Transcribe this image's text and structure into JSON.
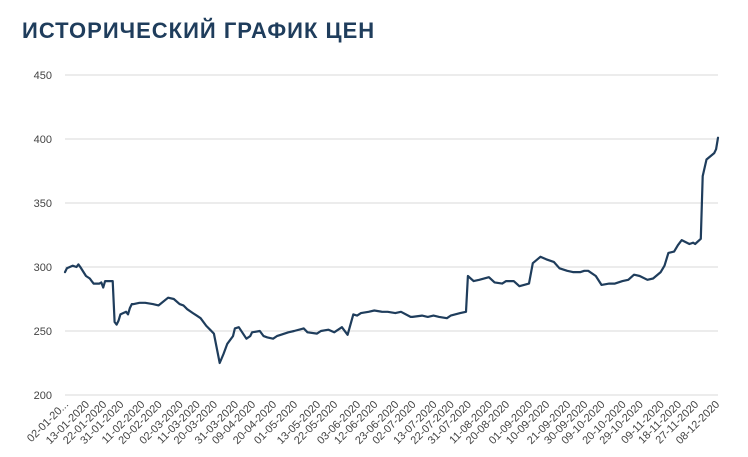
{
  "chart_data": {
    "type": "line",
    "title": "ИСТОРИЧЕСКИЙ ГРАФИК ЦЕН",
    "xlabel": "",
    "ylabel": "",
    "ylim": [
      200,
      450
    ],
    "yticks": [
      200,
      250,
      300,
      350,
      400,
      450
    ],
    "grid": true,
    "line_color": "#1f3d5c",
    "x_tick_labels": [
      "02-01-20...",
      "13-01-2020",
      "22-01-2020",
      "31-01-2020",
      "11-02-2020",
      "20-02-2020",
      "02-03-2020",
      "11-03-2020",
      "20-03-2020",
      "31-03-2020",
      "09-04-2020",
      "20-04-2020",
      "01-05-2020",
      "13-05-2020",
      "22-05-2020",
      "03-06-2020",
      "12-06-2020",
      "23-06-2020",
      "02-07-2020",
      "13-07-2020",
      "22-07-2020",
      "31-07-2020",
      "11-08-2020",
      "20-08-2020",
      "01-09-2020",
      "10-09-2020",
      "21-09-2020",
      "30-09-2020",
      "09-10-2020",
      "20-10-2020",
      "29-10-2020",
      "09-11-2020",
      "18-11-2020",
      "27-11-2020",
      "08-12-2020"
    ],
    "series": [
      {
        "x": [
          "2020-01-02",
          "2020-01-03",
          "2020-01-06",
          "2020-01-08",
          "2020-01-09",
          "2020-01-10",
          "2020-01-13",
          "2020-01-15",
          "2020-01-16",
          "2020-01-17",
          "2020-01-20",
          "2020-01-21",
          "2020-01-22",
          "2020-01-23",
          "2020-01-24",
          "2020-01-27",
          "2020-01-28",
          "2020-01-29",
          "2020-01-30",
          "2020-01-31",
          "2020-02-03",
          "2020-02-04",
          "2020-02-05",
          "2020-02-06",
          "2020-02-07",
          "2020-02-10",
          "2020-02-11",
          "2020-02-13",
          "2020-02-17",
          "2020-02-20",
          "2020-02-25",
          "2020-02-28",
          "2020-03-02",
          "2020-03-04",
          "2020-03-06",
          "2020-03-09",
          "2020-03-11",
          "2020-03-13",
          "2020-03-16",
          "2020-03-18",
          "2020-03-20",
          "2020-03-23",
          "2020-03-25",
          "2020-03-27",
          "2020-03-30",
          "2020-03-31",
          "2020-04-02",
          "2020-04-06",
          "2020-04-08",
          "2020-04-09",
          "2020-04-13",
          "2020-04-15",
          "2020-04-17",
          "2020-04-20",
          "2020-04-22",
          "2020-04-24",
          "2020-04-28",
          "2020-05-01",
          "2020-05-06",
          "2020-05-08",
          "2020-05-13",
          "2020-05-15",
          "2020-05-19",
          "2020-05-22",
          "2020-05-26",
          "2020-05-29",
          "2020-06-01",
          "2020-06-03",
          "2020-06-05",
          "2020-06-09",
          "2020-06-12",
          "2020-06-16",
          "2020-06-19",
          "2020-06-23",
          "2020-06-26",
          "2020-07-01",
          "2020-07-02",
          "2020-07-07",
          "2020-07-10",
          "2020-07-13",
          "2020-07-16",
          "2020-07-20",
          "2020-07-22",
          "2020-07-27",
          "2020-07-30",
          "2020-07-31",
          "2020-08-03",
          "2020-08-06",
          "2020-08-11",
          "2020-08-14",
          "2020-08-18",
          "2020-08-20",
          "2020-08-24",
          "2020-08-27",
          "2020-09-01",
          "2020-09-03",
          "2020-09-07",
          "2020-09-10",
          "2020-09-14",
          "2020-09-17",
          "2020-09-21",
          "2020-09-24",
          "2020-09-28",
          "2020-09-30",
          "2020-10-02",
          "2020-10-06",
          "2020-10-09",
          "2020-10-13",
          "2020-10-16",
          "2020-10-20",
          "2020-10-23",
          "2020-10-26",
          "2020-10-29",
          "2020-11-02",
          "2020-11-05",
          "2020-11-09",
          "2020-11-11",
          "2020-11-13",
          "2020-11-16",
          "2020-11-18",
          "2020-11-20",
          "2020-11-24",
          "2020-11-26",
          "2020-11-27",
          "2020-11-30",
          "2020-12-01",
          "2020-12-03",
          "2020-12-07",
          "2020-12-08",
          "2020-12-09"
        ],
        "y": [
          296,
          299,
          301,
          300,
          302,
          300,
          293,
          291,
          289,
          287,
          287,
          288,
          284,
          289,
          289,
          289,
          257,
          255,
          258,
          263,
          265,
          263,
          268,
          271,
          271,
          272,
          272,
          272,
          271,
          270,
          276,
          275,
          271,
          270,
          267,
          264,
          262,
          260,
          254,
          251,
          248,
          225,
          232,
          240,
          246,
          252,
          253,
          244,
          246,
          249,
          250,
          246,
          245,
          244,
          246,
          247,
          249,
          250,
          252,
          249,
          248,
          250,
          251,
          249,
          253,
          247,
          263,
          262,
          264,
          265,
          266,
          265,
          265,
          264,
          265,
          261,
          261,
          262,
          261,
          262,
          261,
          260,
          262,
          264,
          265,
          293,
          289,
          290,
          292,
          288,
          287,
          289,
          289,
          285,
          287,
          303,
          308,
          306,
          304,
          299,
          297,
          296,
          296,
          297,
          297,
          293,
          286,
          287,
          287,
          289,
          290,
          294,
          293,
          290,
          291,
          296,
          301,
          311,
          312,
          317,
          321,
          318,
          319,
          318,
          322,
          371,
          384,
          389,
          392,
          401
        ]
      }
    ]
  }
}
